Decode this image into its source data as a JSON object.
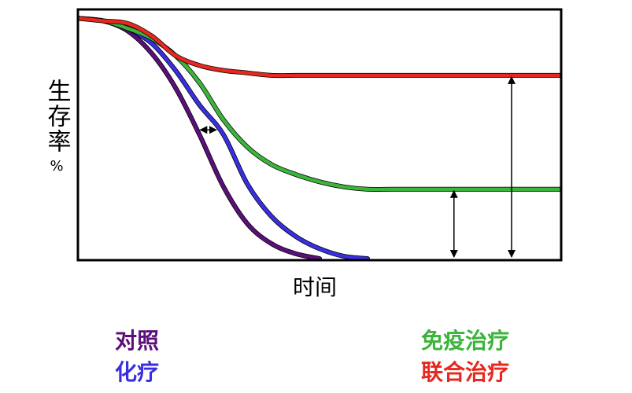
{
  "chart_data": {
    "type": "line",
    "title": "",
    "xlabel": "时间",
    "ylabel": "生存率",
    "yunit": "%",
    "x": [
      0,
      5,
      10,
      15,
      20,
      25,
      30,
      35,
      40,
      45,
      50,
      55,
      60,
      65,
      70,
      75,
      80,
      85,
      90,
      95,
      100
    ],
    "xlim": [
      0,
      100
    ],
    "ylim": [
      0,
      100
    ],
    "grid": false,
    "legend_placement": "bottom",
    "series": [
      {
        "name": "对照",
        "color": "#5b0f7a",
        "values": [
          97,
          96,
          92,
          83,
          69,
          50,
          29,
          14,
          6,
          2,
          0,
          null,
          null,
          null,
          null,
          null,
          null,
          null,
          null,
          null,
          null
        ]
      },
      {
        "name": "化疗",
        "color": "#3a2fe0",
        "values": [
          97,
          96,
          93,
          87,
          76,
          62,
          50,
          30,
          17,
          9,
          4,
          1,
          0,
          null,
          null,
          null,
          null,
          null,
          null,
          null,
          null
        ]
      },
      {
        "name": "免疫治疗",
        "color": "#3cb43c",
        "values": [
          97,
          96,
          93,
          89,
          82,
          71,
          56,
          45,
          38,
          34,
          31,
          29,
          28,
          28,
          28,
          28,
          28,
          28,
          28,
          28,
          28
        ]
      },
      {
        "name": "联合治疗",
        "color": "#e8281e",
        "values": [
          97,
          96,
          95,
          90,
          82,
          78,
          76,
          75,
          74,
          74,
          74,
          74,
          74,
          74,
          74,
          74,
          74,
          74,
          74,
          74,
          74
        ]
      }
    ],
    "annotations": [
      {
        "type": "double-arrow",
        "direction": "horizontal",
        "from_series": "对照",
        "to_series": "化疗",
        "y": 52
      },
      {
        "type": "double-arrow",
        "direction": "vertical",
        "x": 78,
        "from_y": 0,
        "to_y": 28
      },
      {
        "type": "double-arrow",
        "direction": "vertical",
        "x": 90,
        "from_y": 0,
        "to_y": 74
      }
    ]
  }
}
